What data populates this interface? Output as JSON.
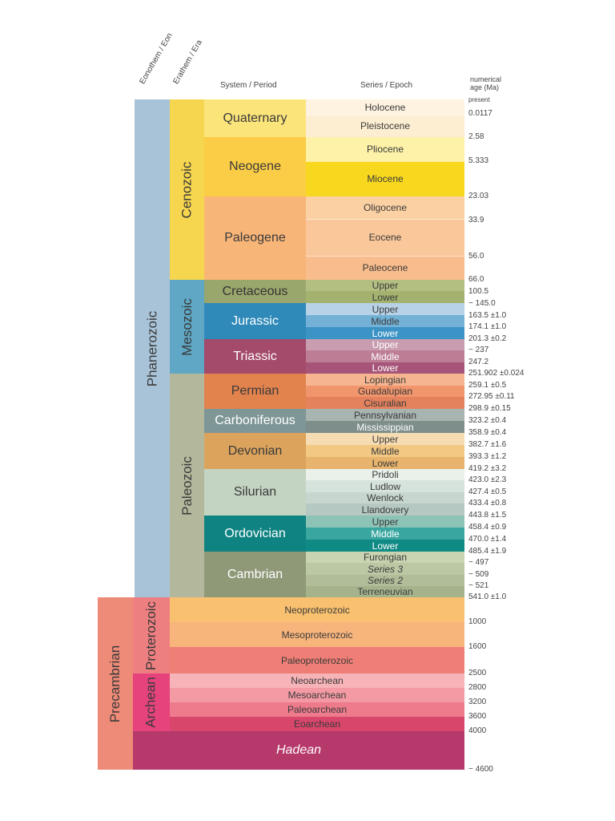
{
  "headers": {
    "eon": "Eonothem / Eon",
    "era": "Erathem / Era",
    "period": "System / Period",
    "epoch": "Series / Epoch",
    "age_line1": "numerical",
    "age_line2": "age (Ma)"
  },
  "eons": {
    "phanerozoic": "Phanerozoic",
    "precambrian": "Precambrian"
  },
  "eras": {
    "cenozoic": "Cenozoic",
    "mesozoic": "Mesozoic",
    "paleozoic": "Paleozoic",
    "proterozoic": "Proterozoic",
    "archean": "Archean"
  },
  "periods": {
    "quaternary": "Quaternary",
    "neogene": "Neogene",
    "paleogene": "Paleogene",
    "cretaceous": "Cretaceous",
    "jurassic": "Jurassic",
    "triassic": "Triassic",
    "permian": "Permian",
    "carboniferous": "Carboniferous",
    "devonian": "Devonian",
    "silurian": "Silurian",
    "ordovician": "Ordovician",
    "cambrian": "Cambrian"
  },
  "epochs": {
    "holocene": "Holocene",
    "pleistocene": "Pleistocene",
    "pliocene": "Pliocene",
    "miocene": "Miocene",
    "oligocene": "Oligocene",
    "eocene": "Eocene",
    "paleocene": "Paleocene",
    "cret_upper": "Upper",
    "cret_lower": "Lower",
    "jur_upper": "Upper",
    "jur_middle": "Middle",
    "jur_lower": "Lower",
    "tri_upper": "Upper",
    "tri_middle": "Middle",
    "tri_lower": "Lower",
    "lopingian": "Lopingian",
    "guadalupian": "Guadalupian",
    "cisuralian": "Cisuralian",
    "pennsylvanian": "Pennsylvanian",
    "mississippian": "Mississippian",
    "dev_upper": "Upper",
    "dev_middle": "Middle",
    "dev_lower": "Lower",
    "pridoli": "Pridoli",
    "ludlow": "Ludlow",
    "wenlock": "Wenlock",
    "llandovery": "Llandovery",
    "ord_upper": "Upper",
    "ord_middle": "Middle",
    "ord_lower": "Lower",
    "furongian": "Furongian",
    "series3": "Series 3",
    "series2": "Series 2",
    "terreneuvian": "Terreneuvian"
  },
  "precambrian_units": {
    "neoproterozoic": "Neoproterozoic",
    "mesoproterozoic": "Mesoproterozoic",
    "paleoproterozoic": "Paleoproterozoic",
    "neoarchean": "Neoarchean",
    "mesoarchean": "Mesoarchean",
    "paleoarchean": "Paleoarchean",
    "eoarchean": "Eoarchean",
    "hadean": "Hadean"
  },
  "ages": [
    "present",
    "0.0117",
    "2.58",
    "5.333",
    "23.03",
    "33.9",
    "56.0",
    "66.0",
    "100.5",
    "~ 145.0",
    "163.5 ±1.0",
    "174.1 ±1.0",
    "201.3 ±0.2",
    "~ 237",
    "247.2",
    "251.902 ±0.024",
    "259.1 ±0.5",
    "272.95 ±0.11",
    "298.9 ±0.15",
    "323.2 ±0.4",
    "358.9 ±0.4",
    "382.7 ±1.6",
    "393.3 ±1.2",
    "419.2 ±3.2",
    "423.0 ±2.3",
    "427.4 ±0.5",
    "433.4 ±0.8",
    "443.8 ±1.5",
    "458.4 ±0.9",
    "470.0 ±1.4",
    "485.4 ±1.9",
    "~ 497",
    "~ 509",
    "~ 521",
    "541.0 ±1.0",
    "1000",
    "1600",
    "2500",
    "2800",
    "3200",
    "3600",
    "4000",
    "~ 4600"
  ],
  "colors": {
    "phanerozoic": "#a8c3d8",
    "precambrian": "#ee8a78",
    "cenozoic": "#f6d64e",
    "mesozoic": "#5fa7c4",
    "paleozoic": "#b3b89c",
    "proterozoic": "#ee7f80",
    "archean": "#e6437c",
    "hadean": "#b6396b"
  }
}
